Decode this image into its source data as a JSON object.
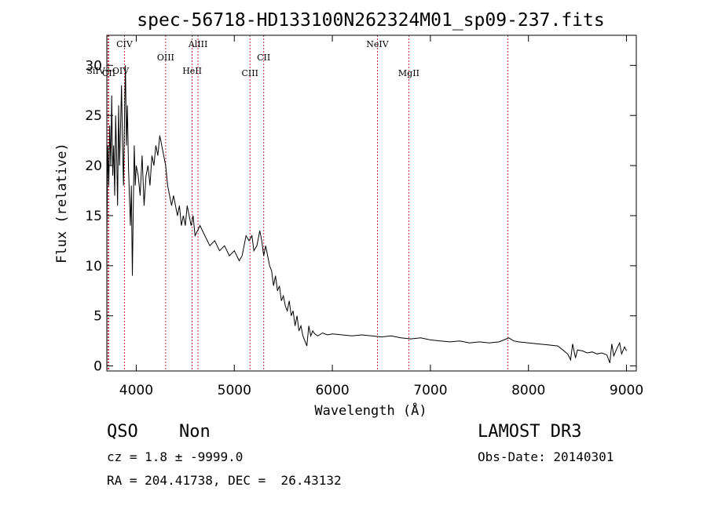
{
  "chart_data": {
    "type": "line",
    "title": "spec-56718-HD133100N262324M01_sp09-237.fits",
    "xlabel": "Wavelength (Å)",
    "ylabel": "Flux (relative)",
    "xlim": [
      3700,
      9100
    ],
    "ylim": [
      -0.5,
      33
    ],
    "x_ticks": [
      4000,
      5000,
      6000,
      7000,
      8000,
      9000
    ],
    "y_ticks": [
      0,
      5,
      10,
      15,
      20,
      25,
      30
    ],
    "line_color": "#000000",
    "marker_color": "#b03030",
    "series": [
      {
        "name": "flux",
        "x": [
          3700,
          3710,
          3720,
          3730,
          3740,
          3750,
          3760,
          3770,
          3780,
          3790,
          3800,
          3810,
          3820,
          3830,
          3840,
          3850,
          3860,
          3870,
          3880,
          3890,
          3900,
          3910,
          3920,
          3930,
          3940,
          3950,
          3960,
          3970,
          3980,
          3990,
          4000,
          4020,
          4040,
          4060,
          4080,
          4100,
          4120,
          4140,
          4160,
          4180,
          4200,
          4220,
          4240,
          4260,
          4280,
          4300,
          4320,
          4340,
          4360,
          4380,
          4400,
          4420,
          4440,
          4460,
          4480,
          4500,
          4520,
          4540,
          4560,
          4580,
          4600,
          4650,
          4700,
          4750,
          4800,
          4850,
          4900,
          4950,
          5000,
          5050,
          5080,
          5100,
          5120,
          5150,
          5180,
          5200,
          5230,
          5260,
          5280,
          5300,
          5320,
          5340,
          5360,
          5380,
          5400,
          5420,
          5440,
          5460,
          5480,
          5500,
          5520,
          5540,
          5560,
          5580,
          5600,
          5620,
          5640,
          5660,
          5680,
          5700,
          5720,
          5740,
          5760,
          5780,
          5800,
          5820,
          5850,
          5900,
          5950,
          6000,
          6100,
          6200,
          6300,
          6400,
          6500,
          6600,
          6700,
          6800,
          6900,
          7000,
          7100,
          7200,
          7300,
          7400,
          7500,
          7600,
          7700,
          7750,
          7800,
          7850,
          7900,
          8000,
          8100,
          8200,
          8300,
          8350,
          8400,
          8430,
          8450,
          8480,
          8500,
          8550,
          8600,
          8650,
          8700,
          8750,
          8800,
          8830,
          8850,
          8870,
          8900,
          8930,
          8950,
          8980,
          9000
        ],
        "y": [
          13,
          22,
          18,
          24,
          20,
          27,
          19,
          22,
          17,
          25,
          21,
          16,
          26,
          20,
          24,
          28,
          22,
          18,
          25,
          30,
          22,
          26,
          20,
          17,
          14,
          18,
          9,
          16,
          22,
          18,
          20,
          19,
          17,
          21,
          16,
          19,
          20,
          18,
          21,
          20,
          22,
          21,
          23,
          22,
          21,
          20,
          18,
          17,
          16,
          17,
          16,
          15,
          16,
          14,
          15,
          14,
          16,
          15,
          14,
          15,
          13,
          14,
          13,
          12,
          12.5,
          11.5,
          12,
          11,
          11.5,
          10.5,
          11,
          12,
          13,
          12.5,
          13,
          11.5,
          12,
          13.5,
          12.5,
          11,
          12,
          11,
          10,
          9.5,
          8,
          9,
          7.5,
          8,
          6.5,
          7,
          6,
          5.5,
          6.5,
          5,
          5.5,
          4,
          5,
          3.5,
          4,
          3,
          2.5,
          2,
          4,
          3,
          3.5,
          3.2,
          3,
          3.3,
          3.1,
          3.2,
          3.1,
          3,
          3.1,
          3,
          2.9,
          3,
          2.8,
          2.7,
          2.8,
          2.6,
          2.5,
          2.4,
          2.5,
          2.3,
          2.4,
          2.3,
          2.4,
          2.6,
          2.8,
          2.5,
          2.4,
          2.3,
          2.2,
          2.1,
          2,
          1.6,
          1.2,
          0.6,
          2.2,
          0.8,
          1.6,
          1.5,
          1.3,
          1.4,
          1.2,
          1.3,
          1.1,
          0.3,
          2.2,
          1,
          1.7,
          2.3,
          1.2,
          1.9,
          1.5
        ]
      }
    ],
    "line_markers": [
      {
        "name": "SiIV+OIV",
        "x": 3710,
        "row": 2
      },
      {
        "name": "CII",
        "x": 3720,
        "row": 3
      },
      {
        "name": "CIV",
        "x": 3880,
        "row": 0
      },
      {
        "name": "OIII",
        "x": 4300,
        "row": 1
      },
      {
        "name": "HeII",
        "x": 4570,
        "row": 2
      },
      {
        "name": "AlIII",
        "x": 4630,
        "row": 0
      },
      {
        "name": "CIII",
        "x": 5160,
        "row": 3
      },
      {
        "name": "CII",
        "x": 5300,
        "row": 1
      },
      {
        "name": "NeIV",
        "x": 6460,
        "row": 0
      },
      {
        "name": "MgII",
        "x": 6780,
        "row": 3
      },
      {
        "name": "",
        "x": 7790,
        "row": 3
      }
    ]
  },
  "info": {
    "class": "QSO",
    "subclass": "Non",
    "cz": "cz = 1.8 ± -9999.0",
    "radec": "RA = 204.41738, DEC =  26.43132",
    "survey": "LAMOST DR3",
    "obs_date": "Obs-Date: 20140301"
  }
}
